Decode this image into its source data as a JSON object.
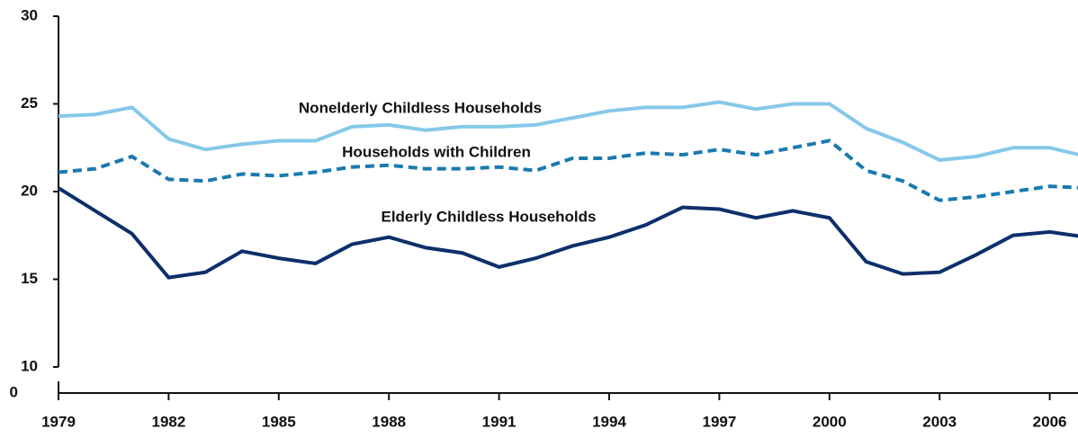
{
  "chart_data": {
    "type": "line",
    "x": [
      1979,
      1980,
      1981,
      1982,
      1983,
      1984,
      1985,
      1986,
      1987,
      1988,
      1989,
      1990,
      1991,
      1992,
      1993,
      1994,
      1995,
      1996,
      1997,
      1998,
      1999,
      2000,
      2001,
      2002,
      2003,
      2004,
      2005,
      2006,
      2007
    ],
    "series": [
      {
        "name": "Nonelderly Childless Households",
        "color": "#86c8e8",
        "dash": false,
        "values": [
          24.3,
          24.4,
          24.8,
          23.0,
          22.4,
          22.7,
          22.9,
          22.9,
          23.7,
          23.8,
          23.5,
          23.7,
          23.7,
          23.8,
          24.2,
          24.6,
          24.8,
          24.8,
          25.1,
          24.7,
          25.0,
          25.0,
          23.6,
          22.8,
          21.8,
          22.0,
          22.5,
          22.5,
          22.0
        ]
      },
      {
        "name": "Households with Children",
        "color": "#1a7ab0",
        "dash": true,
        "values": [
          21.1,
          21.3,
          22.0,
          20.7,
          20.6,
          21.0,
          20.9,
          21.1,
          21.4,
          21.5,
          21.3,
          21.3,
          21.4,
          21.2,
          21.9,
          21.9,
          22.2,
          22.1,
          22.4,
          22.1,
          22.5,
          22.9,
          21.2,
          20.6,
          19.5,
          19.7,
          20.0,
          20.3,
          20.2
        ]
      },
      {
        "name": "Elderly Childless Households",
        "color": "#0d2f6b",
        "dash": false,
        "values": [
          20.2,
          18.9,
          17.6,
          15.1,
          15.4,
          16.6,
          16.2,
          15.9,
          17.0,
          17.4,
          16.8,
          16.5,
          15.7,
          16.2,
          16.9,
          17.4,
          18.1,
          19.1,
          19.0,
          18.5,
          18.9,
          18.5,
          16.0,
          15.3,
          15.4,
          16.4,
          17.5,
          17.7,
          17.4
        ]
      }
    ],
    "xlim": [
      1979,
      2007
    ],
    "xticks": [
      1979,
      1982,
      1985,
      1988,
      1991,
      1994,
      1997,
      2000,
      2003,
      2006
    ],
    "ylim": [
      10,
      30
    ],
    "yticks": [
      10,
      15,
      20,
      25,
      30
    ],
    "ybreak": 0,
    "grid": false
  }
}
